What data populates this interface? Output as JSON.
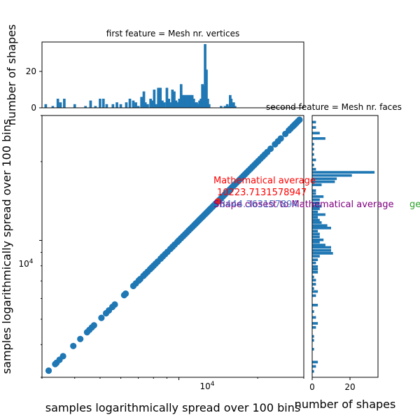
{
  "chart_data": [
    {
      "type": "scatter",
      "panel": "main",
      "xlabel": "samples logarithmically spread over 100 bins",
      "ylabel": "samples logarithmically spread over 100 bins",
      "x_scale": "log",
      "y_scale": "log",
      "xlim": [
        3000,
        30000
      ],
      "ylim": [
        3000,
        30000
      ],
      "x_tick_label": "10^4",
      "y_tick_label": "10^4",
      "series": [
        {
          "color": "#1f77b4",
          "points": [
            [
              3180,
              3180
            ],
            [
              3370,
              3370
            ],
            [
              3410,
              3410
            ],
            [
              3500,
              3500
            ],
            [
              3610,
              3610
            ],
            [
              3950,
              3950
            ],
            [
              4200,
              4200
            ],
            [
              4460,
              4460
            ],
            [
              4550,
              4550
            ],
            [
              4650,
              4650
            ],
            [
              4740,
              4740
            ],
            [
              5060,
              5060
            ],
            [
              5270,
              5270
            ],
            [
              5400,
              5400
            ],
            [
              5570,
              5570
            ],
            [
              5690,
              5690
            ],
            [
              6180,
              6180
            ],
            [
              6260,
              6260
            ],
            [
              6700,
              6700
            ],
            [
              6850,
              6850
            ],
            [
              7020,
              7020
            ],
            [
              7120,
              7120
            ],
            [
              7320,
              7320
            ],
            [
              7450,
              7450
            ],
            [
              7590,
              7590
            ],
            [
              7760,
              7760
            ],
            [
              7880,
              7880
            ],
            [
              8010,
              8010
            ],
            [
              8150,
              8150
            ],
            [
              8300,
              8300
            ],
            [
              8520,
              8520
            ],
            [
              8680,
              8680
            ],
            [
              8860,
              8860
            ],
            [
              9050,
              9050
            ],
            [
              9280,
              9280
            ],
            [
              9460,
              9460
            ],
            [
              9640,
              9640
            ],
            [
              9860,
              9860
            ],
            [
              10000,
              10000
            ],
            [
              10190,
              10190
            ],
            [
              10370,
              10370
            ],
            [
              10550,
              10550
            ],
            [
              10720,
              10720
            ],
            [
              10900,
              10900
            ],
            [
              11080,
              11080
            ],
            [
              11260,
              11260
            ],
            [
              11430,
              11430
            ],
            [
              11590,
              11590
            ],
            [
              11750,
              11750
            ],
            [
              11920,
              11920
            ],
            [
              12080,
              12080
            ],
            [
              12250,
              12250
            ],
            [
              12420,
              12420
            ],
            [
              12590,
              12590
            ],
            [
              12750,
              12750
            ],
            [
              12910,
              12910
            ],
            [
              13080,
              13080
            ],
            [
              13240,
              13240
            ],
            [
              13430,
              13430
            ],
            [
              13620,
              13620
            ],
            [
              13820,
              13820
            ],
            [
              14030,
              14030
            ],
            [
              14260,
              14260
            ],
            [
              14490,
              14490
            ],
            [
              14720,
              14720
            ],
            [
              14960,
              14960
            ],
            [
              15200,
              15200
            ],
            [
              15420,
              15420
            ],
            [
              15650,
              15650
            ],
            [
              15880,
              15880
            ],
            [
              16110,
              16110
            ],
            [
              16350,
              16350
            ],
            [
              16600,
              16600
            ],
            [
              16860,
              16860
            ],
            [
              17120,
              17120
            ],
            [
              17380,
              17380
            ],
            [
              17640,
              17640
            ],
            [
              17900,
              17900
            ],
            [
              18180,
              18180
            ],
            [
              18470,
              18470
            ],
            [
              18780,
              18780
            ],
            [
              19100,
              19100
            ],
            [
              19430,
              19430
            ],
            [
              19760,
              19760
            ],
            [
              20100,
              20100
            ],
            [
              20500,
              20500
            ],
            [
              20900,
              20900
            ],
            [
              21300,
              21300
            ],
            [
              21750,
              21750
            ],
            [
              22400,
              22400
            ],
            [
              23300,
              23300
            ],
            [
              23900,
              23900
            ],
            [
              24500,
              24500
            ],
            [
              25500,
              25500
            ],
            [
              26300,
              26300
            ],
            [
              26700,
              26700
            ],
            [
              27200,
              27200
            ],
            [
              27500,
              27500
            ],
            [
              27800,
              27800
            ],
            [
              28100,
              28100
            ],
            [
              28500,
              28500
            ],
            [
              28900,
              28900
            ]
          ]
        },
        {
          "color": "#d62728",
          "points": [
            [
              14100,
              14100
            ]
          ]
        }
      ]
    },
    {
      "type": "bar",
      "panel": "top",
      "title": "first feature = Mesh nr. vertices",
      "ylabel": "number of shapes",
      "ylim": [
        0,
        36
      ],
      "y_ticks": [
        0,
        20
      ],
      "x_scale": "log",
      "color": "#1f77b4",
      "bins": [
        [
          3100,
          2
        ],
        [
          3300,
          1
        ],
        [
          3450,
          5
        ],
        [
          3530,
          3
        ],
        [
          3650,
          5
        ],
        [
          4000,
          2
        ],
        [
          4400,
          1
        ],
        [
          4600,
          4
        ],
        [
          4800,
          1
        ],
        [
          5000,
          5
        ],
        [
          5150,
          5
        ],
        [
          5300,
          2
        ],
        [
          5600,
          2
        ],
        [
          5800,
          3
        ],
        [
          6000,
          2
        ],
        [
          6300,
          3
        ],
        [
          6500,
          5
        ],
        [
          6700,
          4
        ],
        [
          6850,
          3
        ],
        [
          7000,
          1
        ],
        [
          7200,
          6
        ],
        [
          7350,
          9
        ],
        [
          7450,
          3
        ],
        [
          7600,
          2
        ],
        [
          7800,
          5
        ],
        [
          7900,
          4
        ],
        [
          8050,
          10
        ],
        [
          8200,
          2
        ],
        [
          8350,
          11
        ],
        [
          8500,
          11
        ],
        [
          8650,
          4
        ],
        [
          8800,
          3
        ],
        [
          9000,
          11
        ],
        [
          9150,
          5
        ],
        [
          9300,
          3
        ],
        [
          9450,
          10
        ],
        [
          9600,
          9
        ],
        [
          9750,
          4
        ],
        [
          9900,
          3
        ],
        [
          10050,
          5
        ],
        [
          10200,
          13
        ],
        [
          10350,
          7
        ],
        [
          10500,
          7
        ],
        [
          10650,
          7
        ],
        [
          10800,
          7
        ],
        [
          10950,
          7
        ],
        [
          11100,
          7
        ],
        [
          11250,
          7
        ],
        [
          11400,
          5
        ],
        [
          11550,
          3
        ],
        [
          11700,
          3
        ],
        [
          11850,
          2
        ],
        [
          12000,
          4
        ],
        [
          12150,
          5
        ],
        [
          12300,
          13
        ],
        [
          12450,
          12
        ],
        [
          12600,
          35
        ],
        [
          12750,
          21
        ],
        [
          12900,
          5
        ],
        [
          13050,
          2
        ],
        [
          14500,
          1
        ],
        [
          15000,
          1
        ],
        [
          15300,
          2
        ],
        [
          15500,
          1
        ],
        [
          15700,
          7
        ],
        [
          15850,
          5
        ],
        [
          16000,
          2
        ],
        [
          16200,
          3
        ],
        [
          16400,
          1
        ]
      ]
    },
    {
      "type": "bar",
      "orientation": "horizontal",
      "panel": "right",
      "title": "second feature = Mesh nr. faces",
      "xlabel": "number of shapes",
      "xlim": [
        0,
        36
      ],
      "x_ticks": [
        0,
        20
      ],
      "y_scale": "log",
      "color": "#1f77b4",
      "bins": [
        [
          3160,
          1
        ],
        [
          3300,
          2
        ],
        [
          3430,
          3
        ],
        [
          3840,
          1
        ],
        [
          4150,
          1
        ],
        [
          4300,
          1
        ],
        [
          4650,
          2
        ],
        [
          4820,
          3
        ],
        [
          5080,
          2
        ],
        [
          5350,
          1
        ],
        [
          5660,
          3
        ],
        [
          6150,
          2
        ],
        [
          6380,
          3
        ],
        [
          6550,
          1
        ],
        [
          6800,
          2
        ],
        [
          7050,
          2
        ],
        [
          7250,
          1
        ],
        [
          7560,
          3
        ],
        [
          7760,
          3
        ],
        [
          7940,
          3
        ],
        [
          8200,
          2
        ],
        [
          8430,
          3
        ],
        [
          8700,
          4
        ],
        [
          8930,
          11
        ],
        [
          9150,
          10
        ],
        [
          9400,
          10
        ],
        [
          9600,
          7
        ],
        [
          9850,
          4
        ],
        [
          10050,
          6
        ],
        [
          10320,
          4
        ],
        [
          10580,
          4
        ],
        [
          10850,
          3
        ],
        [
          11150,
          10
        ],
        [
          11400,
          8
        ],
        [
          11700,
          5
        ],
        [
          11950,
          4
        ],
        [
          12250,
          3
        ],
        [
          12550,
          7
        ],
        [
          12850,
          3
        ],
        [
          13200,
          4
        ],
        [
          13500,
          5
        ],
        [
          13900,
          4
        ],
        [
          14300,
          4
        ],
        [
          14700,
          6
        ],
        [
          15100,
          2
        ],
        [
          15500,
          2
        ],
        [
          16300,
          5
        ],
        [
          16750,
          12
        ],
        [
          17200,
          13
        ],
        [
          17700,
          21
        ],
        [
          18200,
          33
        ],
        [
          18700,
          2
        ],
        [
          19400,
          1
        ],
        [
          20300,
          2
        ],
        [
          21300,
          1
        ],
        [
          22300,
          1
        ],
        [
          23300,
          1
        ],
        [
          24500,
          7
        ],
        [
          25700,
          4
        ],
        [
          27000,
          2
        ],
        [
          28300,
          2
        ]
      ]
    }
  ],
  "annotations": {
    "math_average_label": "Mathematical average",
    "math_average_value": "10223.7131578947",
    "overlap_line1": "Shape closest to Mathematical average",
    "overlap_line2": "8444.363157894",
    "green_fragment": "ge"
  }
}
